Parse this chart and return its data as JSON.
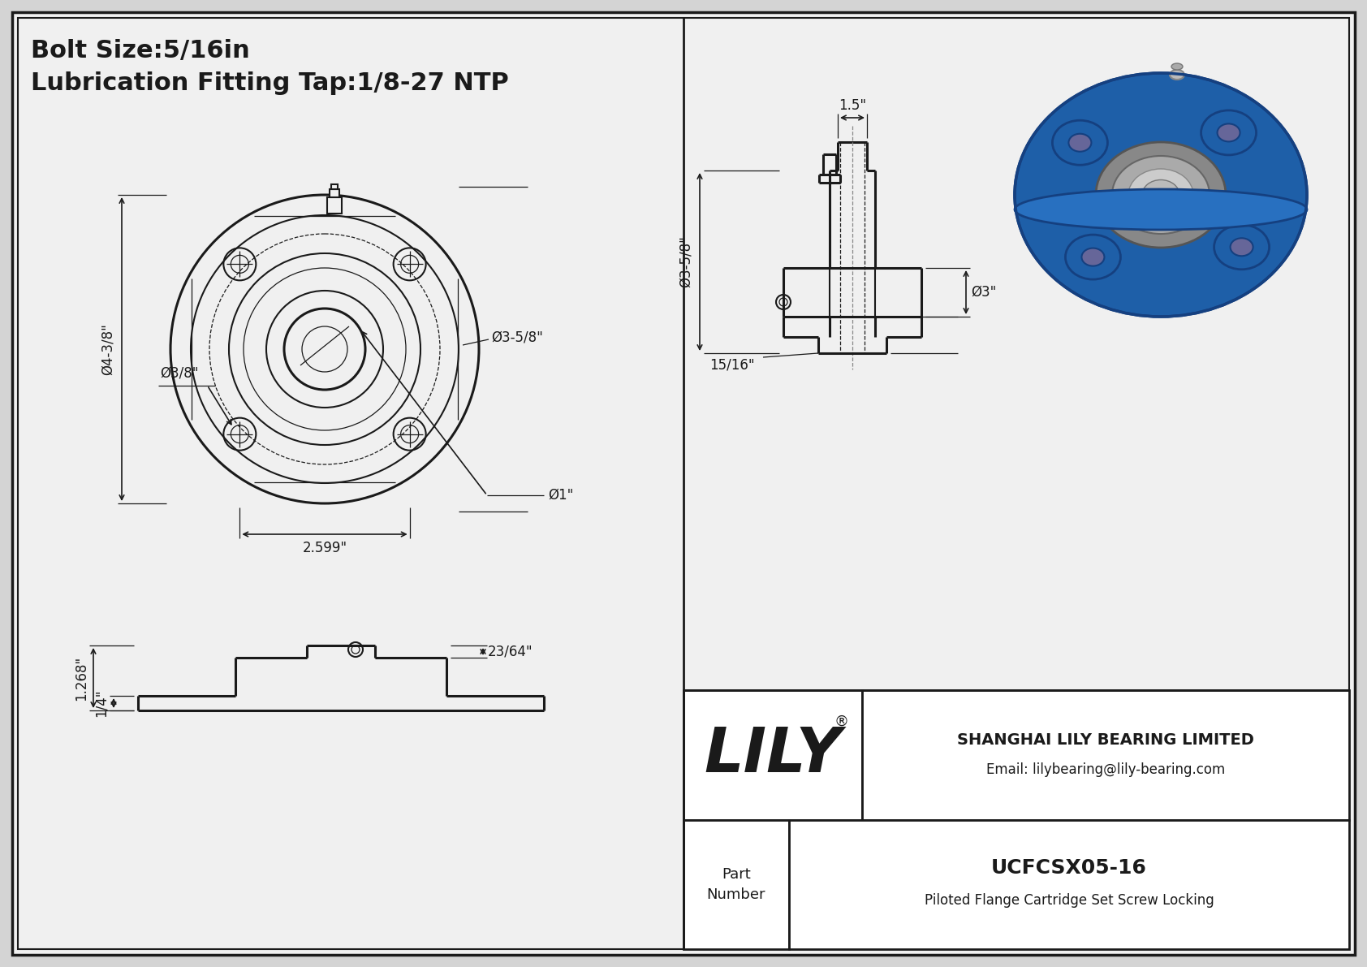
{
  "bg_color": "#d4d4d4",
  "drawing_bg": "#f0f0f0",
  "line_color": "#1a1a1a",
  "title_line1": "Bolt Size:5/16in",
  "title_line2": "Lubrication Fitting Tap:1/8-27 NTP",
  "dims": {
    "bolt_hole": "3/8\"",
    "outer_dia": "4-3/8\"",
    "flange_dia": "3-5/8\"",
    "bore": "1\"",
    "bolt_circle": "2.599\"",
    "side_width": "1.5\"",
    "side_dia": "3\"",
    "side_bottom": "15/16\"",
    "front_height": "1.268\"",
    "front_pilot": "1/4\"",
    "front_right": "23/64\""
  },
  "company": "SHANGHAI LILY BEARING LIMITED",
  "email": "Email: lilybearing@lily-bearing.com",
  "part_number": "UCFCSX05-16",
  "part_desc": "Piloted Flange Cartridge Set Screw Locking",
  "lily_text": "LILY",
  "lily_reg": "®",
  "blue_3d": "#1e5fa8",
  "blue_dark": "#154080",
  "blue_mid": "#2870c0",
  "metal_light": "#c8c8c8",
  "metal_mid": "#a0a0a0",
  "metal_dark": "#707070"
}
